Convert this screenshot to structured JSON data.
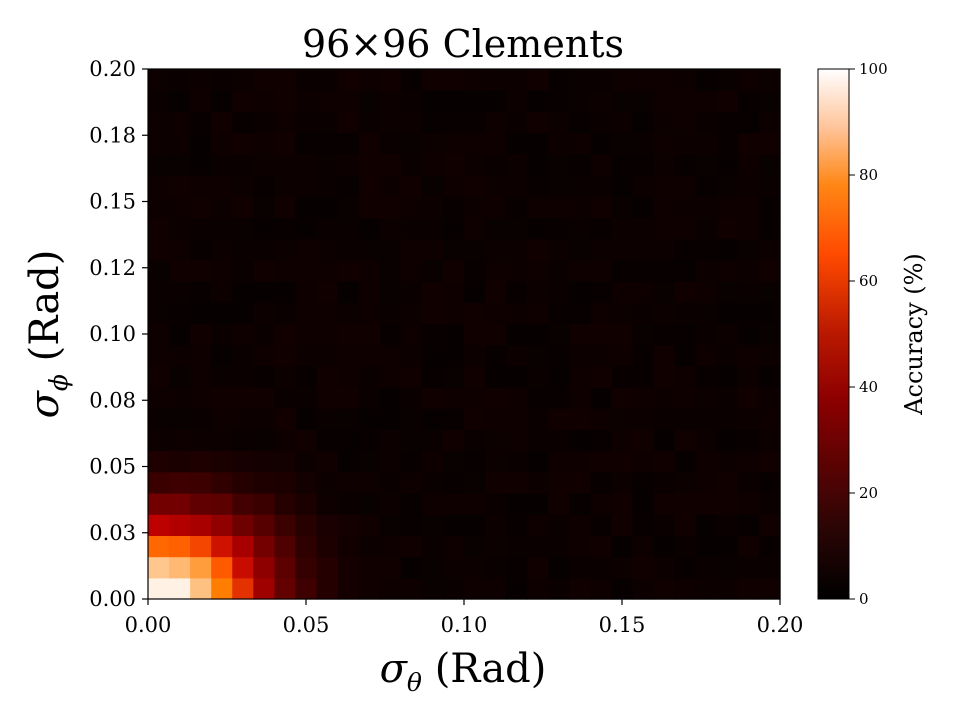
{
  "chart_data": {
    "type": "heatmap",
    "title": "96×96 Clements",
    "xlabel": "σθ (Rad)",
    "xlabel_symbol": "σ",
    "xlabel_subscript": "θ",
    "xlabel_unit": "(Rad)",
    "ylabel": "σϕ (Rad)",
    "ylabel_symbol": "σ",
    "ylabel_subscript": "ϕ",
    "ylabel_unit": "(Rad)",
    "xlim": [
      0,
      0.2
    ],
    "ylim": [
      0,
      0.2
    ],
    "x_ticks": [
      0.0,
      0.05,
      0.1,
      0.15,
      0.2
    ],
    "x_tick_labels": [
      "0.00",
      "0.05",
      "0.10",
      "0.15",
      "0.20"
    ],
    "y_ticks": [
      0.0,
      0.025,
      0.05,
      0.075,
      0.1,
      0.125,
      0.15,
      0.175,
      0.2
    ],
    "y_tick_labels": [
      "0.00",
      "0.03",
      "0.05",
      "0.08",
      "0.10",
      "0.12",
      "0.15",
      "0.18",
      "0.20"
    ],
    "colorbar": {
      "label": "Accuracy (%)",
      "range": [
        0,
        100
      ],
      "ticks": [
        0,
        20,
        40,
        60,
        80,
        100
      ],
      "tick_labels": [
        "0",
        "20",
        "40",
        "60",
        "80",
        "100"
      ],
      "colormap": "gist_heat"
    },
    "grid": {
      "cols": 30,
      "rows": 25,
      "x_step": 0.0066667,
      "y_step": 0.008,
      "model": "accuracy ≈ 3 + 97·exp(-(σθ/0.038)^2.6 - (σϕ/0.032)^2.2), clipped to [0,100]; rows listed bottom (σϕ=0) to top"
    },
    "grid_on": false,
    "legend": "none"
  }
}
